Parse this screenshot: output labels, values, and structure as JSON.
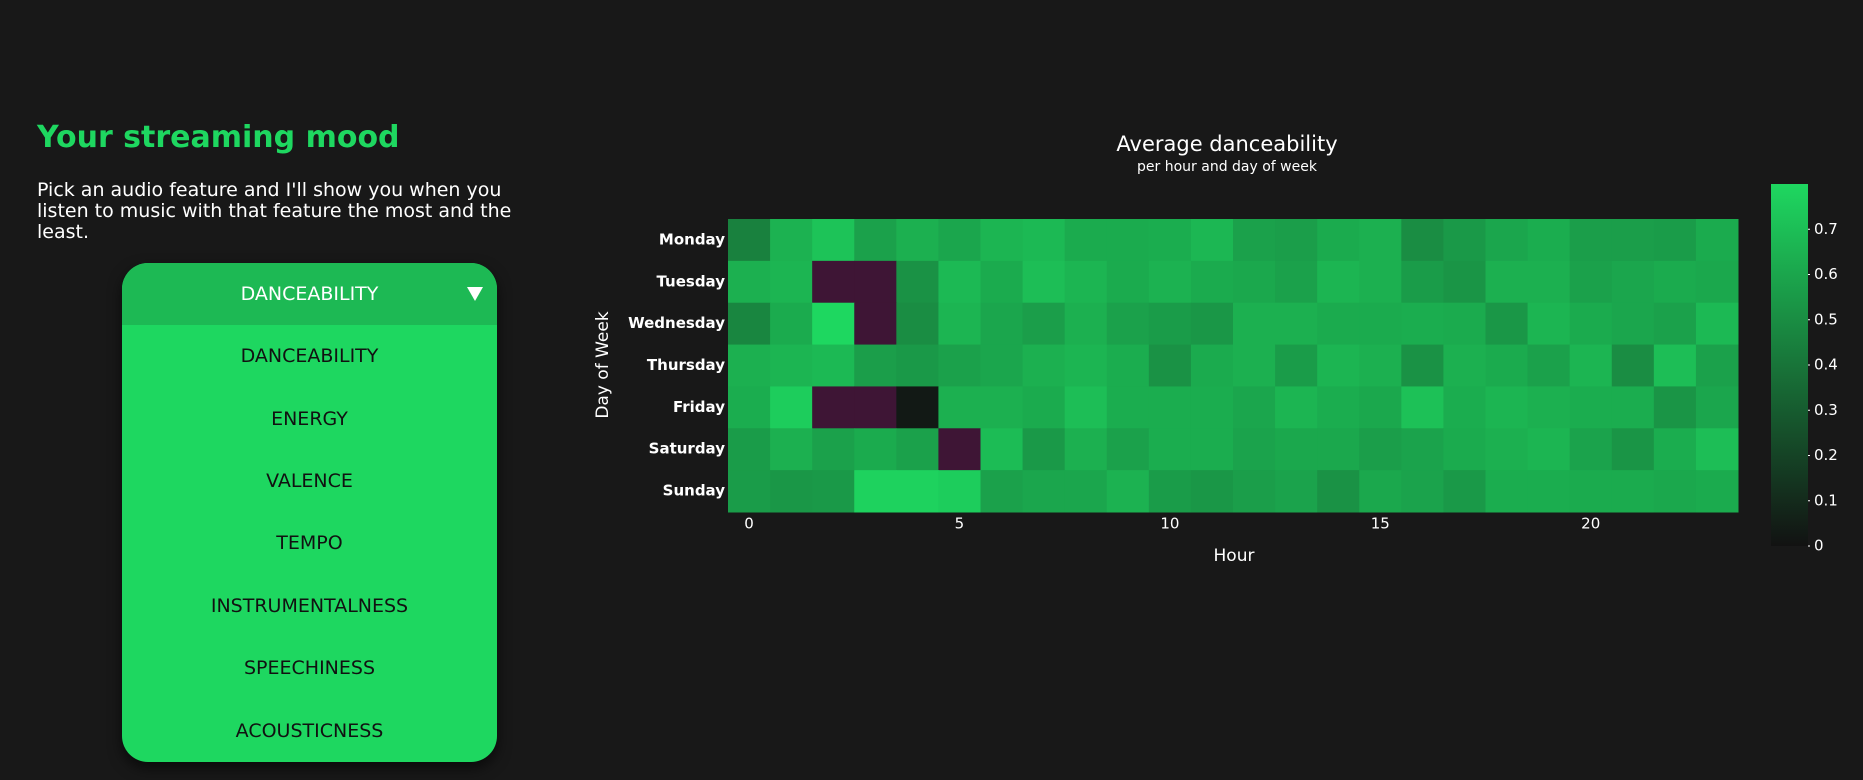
{
  "header": {
    "title": "Your streaming mood",
    "text": "Pick an audio feature and I'll show you when you listen to music with that feature the most and the least."
  },
  "dropdown": {
    "selected": "DANCEABILITY",
    "options": [
      "DANCEABILITY",
      "ENERGY",
      "VALENCE",
      "TEMPO",
      "INSTRUMENTALNESS",
      "SPEECHINESS",
      "ACOUSTICNESS"
    ]
  },
  "chart_data": {
    "type": "heatmap",
    "title": "Average danceability",
    "subtitle": "per hour and day of week",
    "x_label": "Hour",
    "y_label": "Day of Week",
    "x": [
      0,
      1,
      2,
      3,
      4,
      5,
      6,
      7,
      8,
      9,
      10,
      11,
      12,
      13,
      14,
      15,
      16,
      17,
      18,
      19,
      20,
      21,
      22,
      23
    ],
    "categories": [
      "Monday",
      "Tuesday",
      "Wednesday",
      "Thursday",
      "Friday",
      "Saturday",
      "Sunday"
    ],
    "values": [
      [
        0.45,
        0.65,
        0.72,
        0.58,
        0.64,
        0.6,
        0.66,
        0.68,
        0.62,
        0.62,
        0.63,
        0.67,
        0.58,
        0.57,
        0.62,
        0.64,
        0.5,
        0.55,
        0.6,
        0.63,
        0.57,
        0.57,
        0.56,
        0.62
      ],
      [
        0.64,
        0.66,
        null,
        null,
        0.52,
        0.68,
        0.62,
        0.7,
        0.66,
        0.62,
        0.65,
        0.62,
        0.61,
        0.58,
        0.66,
        0.64,
        0.56,
        0.53,
        0.64,
        0.64,
        0.58,
        0.6,
        0.62,
        0.61
      ],
      [
        0.47,
        0.62,
        0.8,
        null,
        0.5,
        0.66,
        0.6,
        0.57,
        0.64,
        0.58,
        0.56,
        0.54,
        0.64,
        0.64,
        0.62,
        0.62,
        0.63,
        0.62,
        0.54,
        0.66,
        0.62,
        0.6,
        0.58,
        0.68
      ],
      [
        0.64,
        0.66,
        0.68,
        0.57,
        0.55,
        0.58,
        0.6,
        0.64,
        0.66,
        0.63,
        0.52,
        0.62,
        0.64,
        0.56,
        0.66,
        0.64,
        0.52,
        0.64,
        0.62,
        0.58,
        0.66,
        0.5,
        0.7,
        0.58
      ],
      [
        0.63,
        0.76,
        null,
        null,
        0.03,
        0.64,
        0.64,
        0.62,
        0.7,
        0.63,
        0.63,
        0.63,
        0.6,
        0.66,
        0.63,
        0.61,
        0.71,
        0.63,
        0.66,
        0.64,
        0.63,
        0.63,
        0.53,
        0.6
      ],
      [
        0.56,
        0.64,
        0.58,
        0.62,
        0.58,
        null,
        0.69,
        0.55,
        0.64,
        0.58,
        0.63,
        0.63,
        0.59,
        0.61,
        0.61,
        0.57,
        0.59,
        0.62,
        0.64,
        0.66,
        0.59,
        0.53,
        0.63,
        0.7
      ],
      [
        0.56,
        0.54,
        0.55,
        0.78,
        0.78,
        0.76,
        0.58,
        0.6,
        0.6,
        0.65,
        0.56,
        0.54,
        0.57,
        0.59,
        0.52,
        0.61,
        0.59,
        0.55,
        0.63,
        0.63,
        0.62,
        0.62,
        0.61,
        0.62
      ]
    ],
    "xlim": [
      -0.5,
      23.5
    ],
    "xticks": [
      0,
      5,
      10,
      15,
      20
    ],
    "zlim": [
      0,
      0.8
    ],
    "zticks": [
      0,
      0.1,
      0.2,
      0.3,
      0.4,
      0.5,
      0.6,
      0.7
    ],
    "colorscale": [
      "#121212",
      "#1ed760"
    ],
    "missing_color": "#3e1535"
  }
}
